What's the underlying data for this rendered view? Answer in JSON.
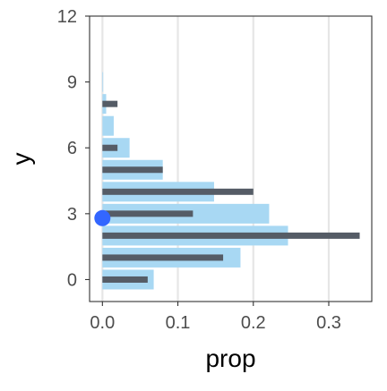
{
  "chart_data": {
    "type": "bar",
    "orientation": "horizontal",
    "xlabel": "prop",
    "ylabel": "y",
    "xlim": [
      -0.017,
      0.357
    ],
    "ylim": [
      -1,
      12
    ],
    "x_ticks": [
      0.0,
      0.1,
      0.2,
      0.3
    ],
    "x_tick_labels": [
      "0.0",
      "0.1",
      "0.2",
      "0.3"
    ],
    "y_ticks": [
      0,
      3,
      6,
      9,
      12
    ],
    "y_tick_labels": [
      "0",
      "3",
      "6",
      "9",
      "12"
    ],
    "grid": "vertical major lines",
    "categories": [
      0,
      1,
      2,
      3,
      4,
      5,
      6,
      7,
      8,
      9
    ],
    "series": [
      {
        "style": "wide light-blue bars",
        "color": "#a8d8f3",
        "values": [
          0.068,
          0.183,
          0.246,
          0.221,
          0.148,
          0.08,
          0.036,
          0.015,
          0.005,
          0.001
        ]
      },
      {
        "style": "narrow dark-gray bars",
        "color": "#555c66",
        "values": [
          0.06,
          0.16,
          0.341,
          0.12,
          0.2,
          0.08,
          0.02,
          0.0,
          0.02,
          0.0
        ]
      }
    ],
    "marker": {
      "x": 0.0,
      "y": 2.8,
      "color": "#3366ff"
    }
  }
}
